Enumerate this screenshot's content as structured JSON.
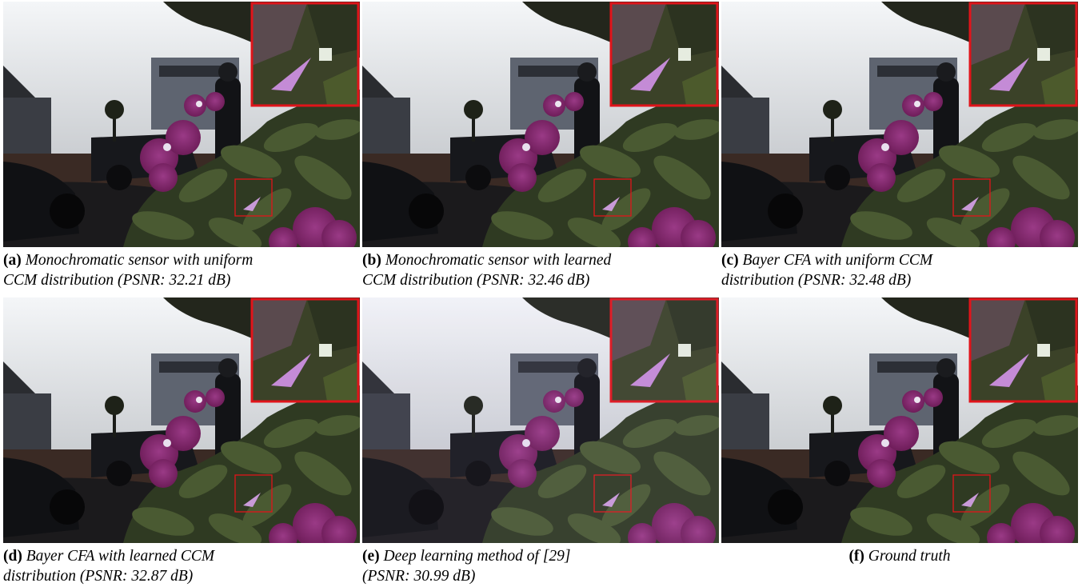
{
  "figure": {
    "panels": [
      {
        "label": "(a)",
        "caption_line1": "Monochromatic sensor with uniform",
        "caption_line2": "CCM distribution (PSNR: 32.21 dB)",
        "tint": "#ffffff",
        "tint_opacity": 0
      },
      {
        "label": "(b)",
        "caption_line1": "Monochromatic sensor with learned",
        "caption_line2": "CCM distribution (PSNR: 32.46 dB)",
        "tint": "#ffffff",
        "tint_opacity": 0
      },
      {
        "label": "(c)",
        "caption_line1": "Bayer CFA with uniform CCM",
        "caption_line2": "distribution (PSNR: 32.48 dB)",
        "tint": "#ffffff",
        "tint_opacity": 0
      },
      {
        "label": "(d)",
        "caption_line1": "Bayer CFA with learned CCM",
        "caption_line2": "distribution (PSNR: 32.87 dB)",
        "tint": "#ffffff",
        "tint_opacity": 0
      },
      {
        "label": "(e)",
        "caption_line1": "Deep learning method of [29]",
        "caption_line2": "(PSNR: 30.99 dB)",
        "tint": "#c8b8ff",
        "tint_opacity": 0.06
      },
      {
        "label": "(f)",
        "caption_line1": "Ground truth",
        "caption_line2": "",
        "tint": "#ffffff",
        "tint_opacity": 0
      }
    ],
    "colors": {
      "zoom_box": "#e0141a",
      "sky": "#f4f6f8",
      "flower": "#6a1a55",
      "foliage": "#2f3a22",
      "ground": "#3a2a24"
    }
  }
}
